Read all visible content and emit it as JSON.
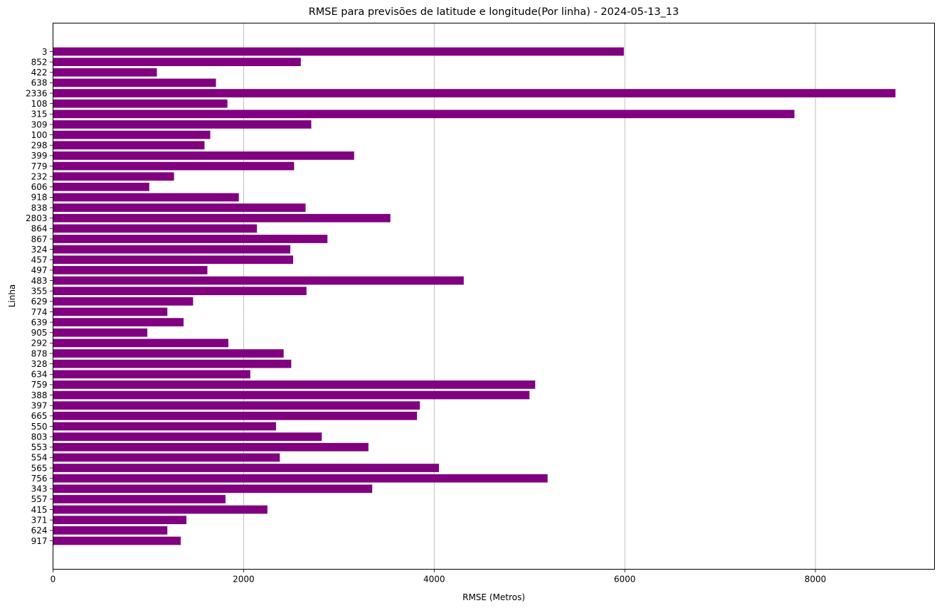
{
  "chart_data": {
    "type": "bar",
    "orientation": "horizontal",
    "title": "RMSE para previsões de latitude e longitude(Por linha) - 2024-05-13_13",
    "xlabel": "RMSE (Metros)",
    "ylabel": "Linha",
    "xlim": [
      0,
      9250
    ],
    "xticks": [
      0,
      2000,
      4000,
      6000,
      8000
    ],
    "xtick_labels": [
      "0",
      "2000",
      "4000",
      "6000",
      "8000"
    ],
    "grid": "x-major",
    "bar_color": "#800080",
    "categories": [
      "3",
      "852",
      "422",
      "638",
      "2336",
      "108",
      "315",
      "309",
      "100",
      "298",
      "399",
      "779",
      "232",
      "606",
      "918",
      "838",
      "2803",
      "864",
      "867",
      "324",
      "457",
      "497",
      "483",
      "355",
      "629",
      "774",
      "639",
      "905",
      "292",
      "878",
      "328",
      "634",
      "759",
      "388",
      "397",
      "665",
      "550",
      "803",
      "553",
      "554",
      "565",
      "756",
      "343",
      "557",
      "415",
      "371",
      "624",
      "917"
    ],
    "values": [
      5990,
      2600,
      1090,
      1710,
      8840,
      1830,
      7780,
      2710,
      1650,
      1590,
      3160,
      2530,
      1270,
      1010,
      1950,
      2650,
      3540,
      2140,
      2880,
      2490,
      2520,
      1620,
      4310,
      2660,
      1470,
      1200,
      1370,
      990,
      1840,
      2420,
      2500,
      2070,
      5060,
      5000,
      3850,
      3820,
      2340,
      2820,
      3310,
      2380,
      4050,
      5190,
      3350,
      1810,
      2250,
      1400,
      1200,
      1340
    ]
  }
}
